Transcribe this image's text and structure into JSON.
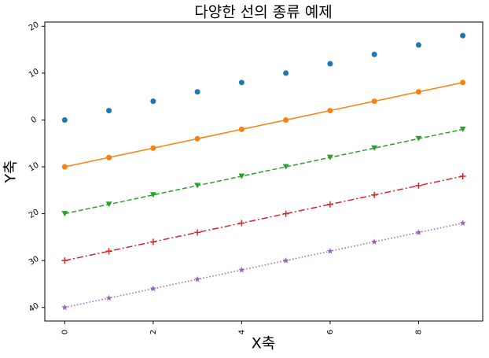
{
  "chart_data": {
    "type": "line",
    "title": "다양한 선의 종류 예제",
    "x_label": "X축",
    "y_label": "Y축",
    "x": [
      0,
      1,
      2,
      3,
      4,
      5,
      6,
      7,
      8,
      9
    ],
    "series": [
      {
        "color": "#1f77b4",
        "linestyle": "none",
        "marker": "circle",
        "values": [
          0,
          2,
          4,
          6,
          8,
          10,
          12,
          14,
          16,
          18
        ]
      },
      {
        "color": "#ff7f0e",
        "linestyle": "solid",
        "marker": "circle",
        "values": [
          -10,
          -8,
          -6,
          -4,
          -2,
          0,
          2,
          4,
          6,
          8
        ]
      },
      {
        "color": "#2ca02c",
        "linestyle": "dashed",
        "marker": "triangle-down",
        "values": [
          -20,
          -18,
          -16,
          -14,
          -12,
          -10,
          -8,
          -6,
          -4,
          -2
        ]
      },
      {
        "color": "#d62728",
        "linestyle": "dashdot",
        "marker": "plus",
        "values": [
          -30,
          -28,
          -26,
          -24,
          -22,
          -20,
          -18,
          -16,
          -14,
          -12
        ]
      },
      {
        "color": "#9467bd",
        "linestyle": "dotted",
        "marker": "star",
        "values": [
          -40,
          -38,
          -36,
          -34,
          -32,
          -30,
          -28,
          -26,
          -24,
          -22
        ]
      }
    ],
    "xlim": [
      -0.45,
      9.45
    ],
    "xticks": [
      0,
      2,
      4,
      6,
      8
    ],
    "ylim": [
      -42.9,
      20.9
    ],
    "yticks": [
      {
        "value": -40,
        "label": "40"
      },
      {
        "value": -30,
        "label": "30"
      },
      {
        "value": -20,
        "label": "20"
      },
      {
        "value": -10,
        "label": "10"
      },
      0,
      10,
      20
    ],
    "grid": false
  }
}
